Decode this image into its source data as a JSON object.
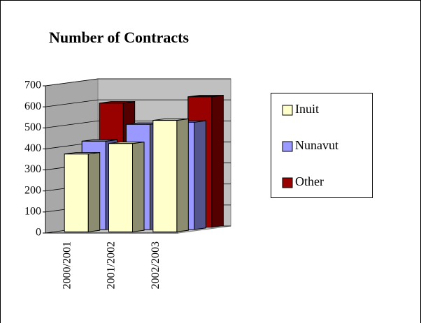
{
  "chart_data": {
    "type": "bar3d",
    "title": "Number of Contracts",
    "categories": [
      "2000/2001",
      "2001/2002",
      "2002/2003"
    ],
    "series": [
      {
        "name": "Inuit",
        "color": "#ffffcc",
        "values": [
          370,
          420,
          530
        ]
      },
      {
        "name": "Nunavut",
        "color": "#9999ff",
        "values": [
          420,
          500,
          510
        ]
      },
      {
        "name": "Other",
        "color": "#990000",
        "values": [
          590,
          450,
          620
        ]
      }
    ],
    "ylim": [
      0,
      700
    ],
    "yticks": [
      0,
      100,
      200,
      300,
      400,
      500,
      600,
      700
    ],
    "grid": true,
    "legend": "right"
  }
}
